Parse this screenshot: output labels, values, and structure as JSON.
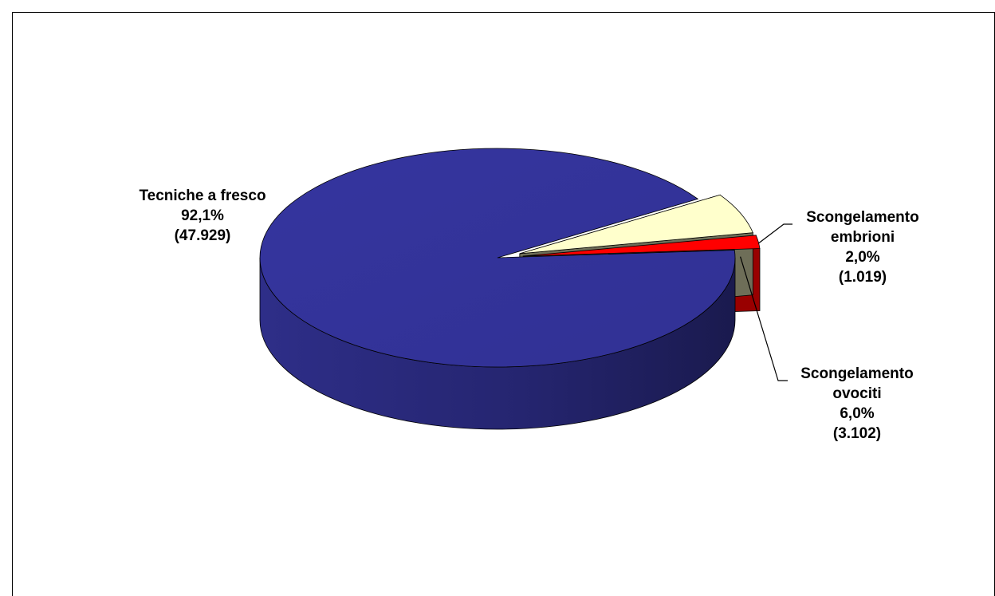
{
  "chart_data": {
    "type": "pie",
    "title": "",
    "slices": [
      {
        "name": "Tecniche a fresco",
        "percent_label": "92,1%",
        "count_label": "(47.929)",
        "value": 47929,
        "color": "#333399",
        "side_color": "#22226a",
        "exploded": false
      },
      {
        "name": "Scongelamento ovociti",
        "name_line1": "Scongelamento",
        "name_line2": "ovociti",
        "percent_label": "6,0%",
        "count_label": "(3.102)",
        "value": 3102,
        "color": "#ffffcc",
        "side_color": "#6e6e58",
        "exploded": true
      },
      {
        "name": "Scongelamento embrioni",
        "name_line1": "Scongelamento",
        "name_line2": "embrioni",
        "percent_label": "2,0%",
        "count_label": "(1.019)",
        "value": 1019,
        "color": "#ff0000",
        "side_color": "#990000",
        "exploded": true
      }
    ],
    "legend": "none",
    "data_labels": "outside"
  }
}
